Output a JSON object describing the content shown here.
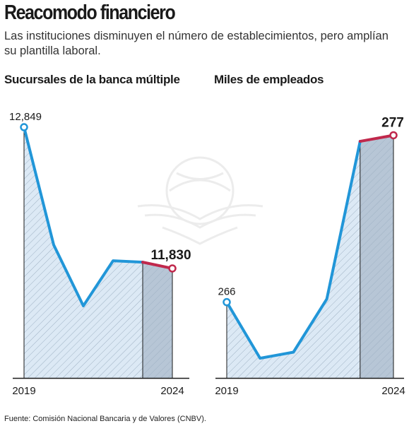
{
  "header": {
    "title": "Reacomodo financiero",
    "subtitle": "Las instituciones disminuyen el número de establecimientos, pero amplían su plantilla laboral."
  },
  "colors": {
    "line": "#2196d8",
    "highlight": "#c0284c",
    "fill": "#dce9f5",
    "highlight_fill": "#b7c6d6",
    "hatch": "#9fb2c4",
    "axis": "#1a1a1a"
  },
  "chart_data": [
    {
      "type": "area",
      "title": "Sucursales de la banca múltiple",
      "x": [
        2019,
        2020,
        2021,
        2022,
        2023,
        2024
      ],
      "x_tick_labels": [
        "2019",
        "2024"
      ],
      "values": [
        12849,
        12000,
        11560,
        11885,
        11875,
        11830
      ],
      "ylim": [
        11040,
        12900
      ],
      "data_labels": [
        {
          "index": 0,
          "text": "12,849"
        },
        {
          "index": 5,
          "text": "11,830"
        }
      ],
      "highlight_last_segment": true,
      "grid": false
    },
    {
      "type": "area",
      "title": "Miles de empleados",
      "x": [
        2019,
        2020,
        2021,
        2022,
        2023,
        2024
      ],
      "x_tick_labels": [
        "2019",
        "2024"
      ],
      "values": [
        266,
        262.3,
        262.7,
        266.2,
        276.6,
        277
      ],
      "ylim": [
        261,
        278
      ],
      "data_labels": [
        {
          "index": 0,
          "text": "266"
        },
        {
          "index": 5,
          "text": "277"
        }
      ],
      "highlight_last_segment": true,
      "grid": false
    }
  ],
  "footer": {
    "source": "Fuente: Comisión Nacional Bancaria y de Valores (CNBV)."
  }
}
